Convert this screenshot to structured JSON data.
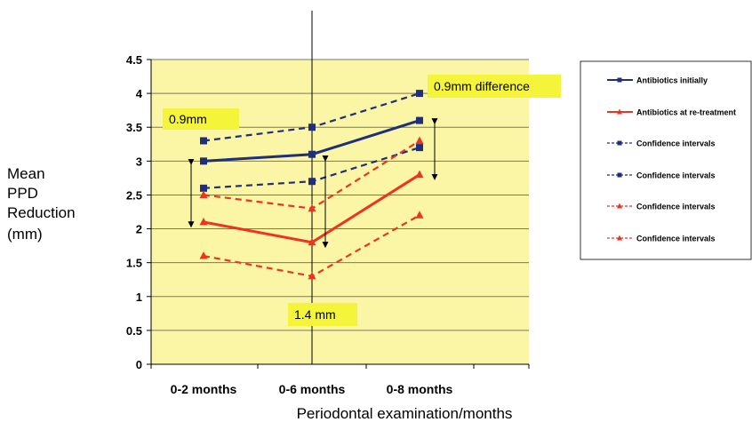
{
  "chart_data": {
    "type": "line",
    "categories": [
      "0-2 months",
      "0-6 months",
      "0-8 months"
    ],
    "ylim": [
      0,
      4.5
    ],
    "yticks": [
      "0",
      "0.5",
      "1",
      "1.5",
      "2",
      "2.5",
      "3",
      "3.5",
      "4",
      "4.5"
    ],
    "ylabel": [
      "Mean",
      "PPD",
      "Reduction",
      "(mm)"
    ],
    "xlabel": "Periodontal examination/months",
    "grid": true,
    "legend_position": "right",
    "series": [
      {
        "name": "Antibiotics initially",
        "values": [
          3.0,
          3.1,
          3.6
        ],
        "color": "#1f2f7a",
        "style": "solid",
        "marker": "square"
      },
      {
        "name": "Antibiotics at re-treatment",
        "values": [
          2.1,
          1.8,
          2.8
        ],
        "color": "#ee3322",
        "style": "solid",
        "marker": "triangle"
      },
      {
        "name": "Confidence intervals",
        "values": [
          3.3,
          3.5,
          4.0
        ],
        "color": "#1f2f7a",
        "style": "dashed",
        "marker": "square"
      },
      {
        "name": "Confidence intervals",
        "values": [
          2.6,
          2.7,
          3.2
        ],
        "color": "#1f2f7a",
        "style": "dashed",
        "marker": "square"
      },
      {
        "name": "Confidence intervals",
        "values": [
          2.5,
          2.3,
          3.3
        ],
        "color": "#ee3322",
        "style": "dashed",
        "marker": "triangle"
      },
      {
        "name": "Confidence intervals",
        "values": [
          1.6,
          1.3,
          2.2
        ],
        "color": "#ee3322",
        "style": "dashed",
        "marker": "triangle"
      }
    ],
    "annotations": [
      {
        "text": "0.9mm",
        "from": 2.05,
        "to": 3.0,
        "category": 0
      },
      {
        "text": "1.4 mm",
        "from": 1.75,
        "to": 3.05,
        "category": 1
      },
      {
        "text": "0.9mm difference",
        "from": 2.75,
        "to": 3.6,
        "category": 2
      }
    ],
    "plot_background": "#fbf5a6",
    "annotation_background": "#f4f43a"
  }
}
